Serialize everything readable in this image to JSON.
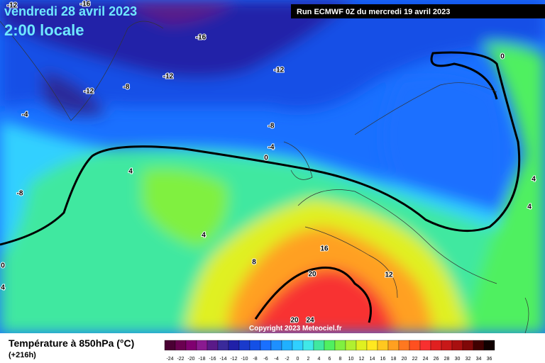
{
  "header": {
    "date": "vendredi 28 avril 2023",
    "time": "2:00 locale",
    "run": "Run ECMWF 0Z du mercredi 19 avril 2023"
  },
  "map": {
    "contour_labels": [
      -12,
      -16,
      -16,
      -12,
      -12,
      -12,
      -8,
      -4,
      -8,
      -4,
      0,
      4,
      -8,
      4,
      8,
      0,
      4,
      16,
      12,
      20,
      20,
      24,
      0,
      4,
      4
    ]
  },
  "footer": {
    "title": "Température à 850hPa (°C)",
    "lead": "(+216h)",
    "copyright": "Copyright 2023 Meteociel.fr"
  },
  "legend": {
    "values": [
      -24,
      -22,
      -20,
      -18,
      -16,
      -14,
      -12,
      -10,
      -8,
      -6,
      -4,
      -2,
      0,
      2,
      4,
      6,
      8,
      10,
      12,
      14,
      16,
      18,
      20,
      22,
      24,
      26,
      28,
      30,
      32,
      34,
      36
    ],
    "colors": [
      "#4a0033",
      "#6a0050",
      "#800070",
      "#8a1a90",
      "#5a1a88",
      "#3a2a9a",
      "#2020a8",
      "#1a3acc",
      "#1450e6",
      "#1a70ff",
      "#1e90ff",
      "#20b0ff",
      "#30d0ff",
      "#40e8e8",
      "#40e8a0",
      "#50f060",
      "#80f040",
      "#b0f030",
      "#e0f020",
      "#ffe820",
      "#ffc820",
      "#ffa020",
      "#ff7820",
      "#ff5020",
      "#f83030",
      "#e02020",
      "#c81818",
      "#a81010",
      "#800808",
      "#400000",
      "#100000"
    ]
  }
}
